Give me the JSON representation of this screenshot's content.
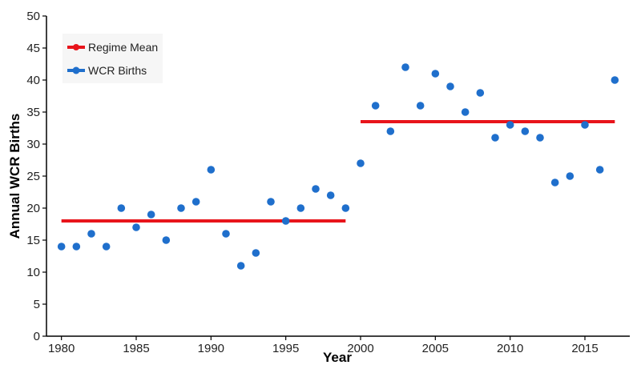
{
  "chart_data": {
    "type": "scatter",
    "xlabel": "Year",
    "ylabel": "Annual WCR Births",
    "xlim": [
      1979,
      2018
    ],
    "ylim": [
      0,
      50
    ],
    "xticks": [
      1980,
      1985,
      1990,
      1995,
      2000,
      2005,
      2010,
      2015
    ],
    "yticks": [
      0,
      5,
      10,
      15,
      20,
      25,
      30,
      35,
      40,
      45,
      50
    ],
    "grid": false,
    "legend_position": "top-left",
    "legend": [
      "Regime Mean",
      "WCR Births"
    ],
    "series": [
      {
        "name": "WCR Births",
        "type": "scatter",
        "color": "#1f6fcc",
        "x": [
          1980,
          1981,
          1982,
          1983,
          1984,
          1985,
          1986,
          1987,
          1988,
          1989,
          1990,
          1991,
          1992,
          1993,
          1994,
          1995,
          1996,
          1997,
          1998,
          1999,
          2000,
          2001,
          2002,
          2003,
          2004,
          2005,
          2006,
          2007,
          2008,
          2009,
          2010,
          2011,
          2012,
          2013,
          2014,
          2015,
          2016,
          2017
        ],
        "y": [
          14,
          14,
          16,
          14,
          20,
          17,
          19,
          15,
          20,
          21,
          26,
          16,
          11,
          13,
          21,
          18,
          20,
          23,
          22,
          20,
          27,
          36,
          32,
          42,
          36,
          41,
          39,
          35,
          38,
          31,
          33,
          32,
          31,
          24,
          25,
          33,
          26,
          40
        ]
      },
      {
        "name": "Regime Mean",
        "type": "line",
        "color": "#e8141b",
        "segments": [
          {
            "x": [
              1980,
              1999
            ],
            "y": [
              18,
              18
            ]
          },
          {
            "x": [
              2000,
              2017
            ],
            "y": [
              33.5,
              33.5
            ]
          }
        ]
      }
    ]
  }
}
